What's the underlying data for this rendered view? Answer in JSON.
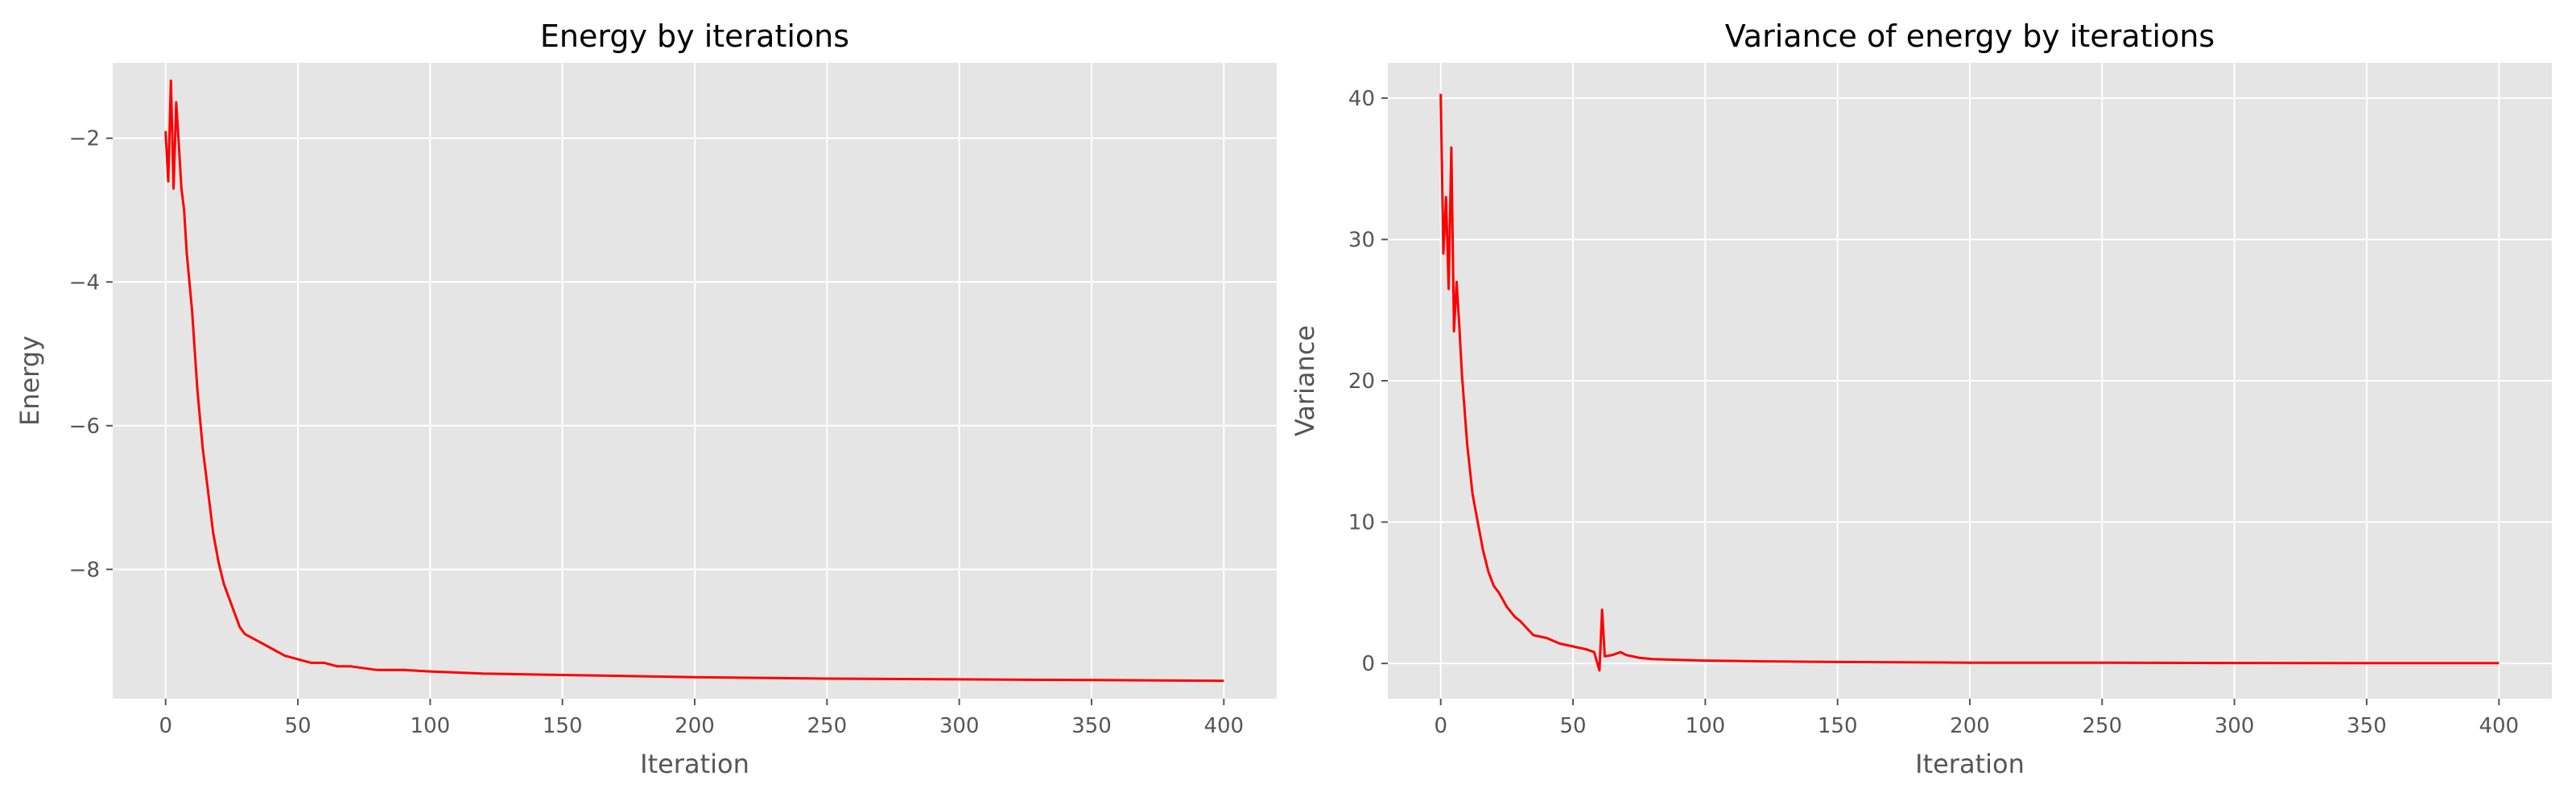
{
  "colors": {
    "background": "#ffffff",
    "plot_background": "#e5e5e5",
    "grid": "#ffffff",
    "tick_text": "#555555",
    "line": "#ff0000"
  },
  "chart_data": [
    {
      "type": "line",
      "title": "Energy by iterations",
      "xlabel": "Iteration",
      "ylabel": "Energy",
      "xlim": [
        -20,
        420
      ],
      "ylim": [
        -9.8,
        -0.95
      ],
      "xticks": [
        0,
        50,
        100,
        150,
        200,
        250,
        300,
        350,
        400
      ],
      "xtick_labels": [
        "0",
        "50",
        "100",
        "150",
        "200",
        "250",
        "300",
        "350",
        "400"
      ],
      "yticks": [
        -8,
        -6,
        -4,
        -2
      ],
      "ytick_labels": [
        "−8",
        "−6",
        "−4",
        "−2"
      ],
      "grid": true,
      "series": [
        {
          "color": "#ff0000",
          "x": [
            0,
            1,
            2,
            3,
            4,
            5,
            6,
            7,
            8,
            9,
            10,
            12,
            14,
            16,
            18,
            20,
            22,
            25,
            28,
            30,
            35,
            40,
            45,
            50,
            55,
            60,
            65,
            70,
            80,
            90,
            100,
            120,
            150,
            200,
            250,
            300,
            350,
            400
          ],
          "y": [
            -1.9,
            -2.6,
            -1.2,
            -2.7,
            -1.5,
            -2.1,
            -2.7,
            -3.0,
            -3.6,
            -4.0,
            -4.4,
            -5.5,
            -6.3,
            -6.9,
            -7.5,
            -7.9,
            -8.2,
            -8.5,
            -8.8,
            -8.9,
            -9.0,
            -9.1,
            -9.2,
            -9.25,
            -9.3,
            -9.3,
            -9.35,
            -9.35,
            -9.4,
            -9.4,
            -9.42,
            -9.45,
            -9.47,
            -9.5,
            -9.52,
            -9.53,
            -9.54,
            -9.55
          ]
        }
      ]
    },
    {
      "type": "line",
      "title": "Variance of energy by iterations",
      "xlabel": "Iteration",
      "ylabel": "Variance",
      "xlim": [
        -20,
        420
      ],
      "ylim": [
        -2.5,
        42.5
      ],
      "xticks": [
        0,
        50,
        100,
        150,
        200,
        250,
        300,
        350,
        400
      ],
      "xtick_labels": [
        "0",
        "50",
        "100",
        "150",
        "200",
        "250",
        "300",
        "350",
        "400"
      ],
      "yticks": [
        0,
        10,
        20,
        30,
        40
      ],
      "ytick_labels": [
        "0",
        "10",
        "20",
        "30",
        "40"
      ],
      "grid": true,
      "series": [
        {
          "color": "#ff0000",
          "x": [
            0,
            1,
            2,
            3,
            4,
            5,
            6,
            7,
            8,
            9,
            10,
            12,
            14,
            16,
            18,
            20,
            22,
            25,
            28,
            30,
            35,
            40,
            45,
            50,
            55,
            58,
            60,
            61,
            62,
            65,
            68,
            70,
            75,
            80,
            90,
            100,
            120,
            150,
            200,
            250,
            300,
            350,
            400
          ],
          "y": [
            40.3,
            29.0,
            33.0,
            26.5,
            36.5,
            23.5,
            27.0,
            24.0,
            20.5,
            18.0,
            15.5,
            12.0,
            10.0,
            8.0,
            6.5,
            5.5,
            5.0,
            4.0,
            3.3,
            3.0,
            2.0,
            1.8,
            1.4,
            1.2,
            1.0,
            0.8,
            -0.5,
            3.8,
            0.5,
            0.6,
            0.8,
            0.6,
            0.4,
            0.3,
            0.25,
            0.2,
            0.15,
            0.1,
            0.05,
            0.05,
            0.03,
            0.02,
            0.02
          ]
        }
      ]
    }
  ]
}
